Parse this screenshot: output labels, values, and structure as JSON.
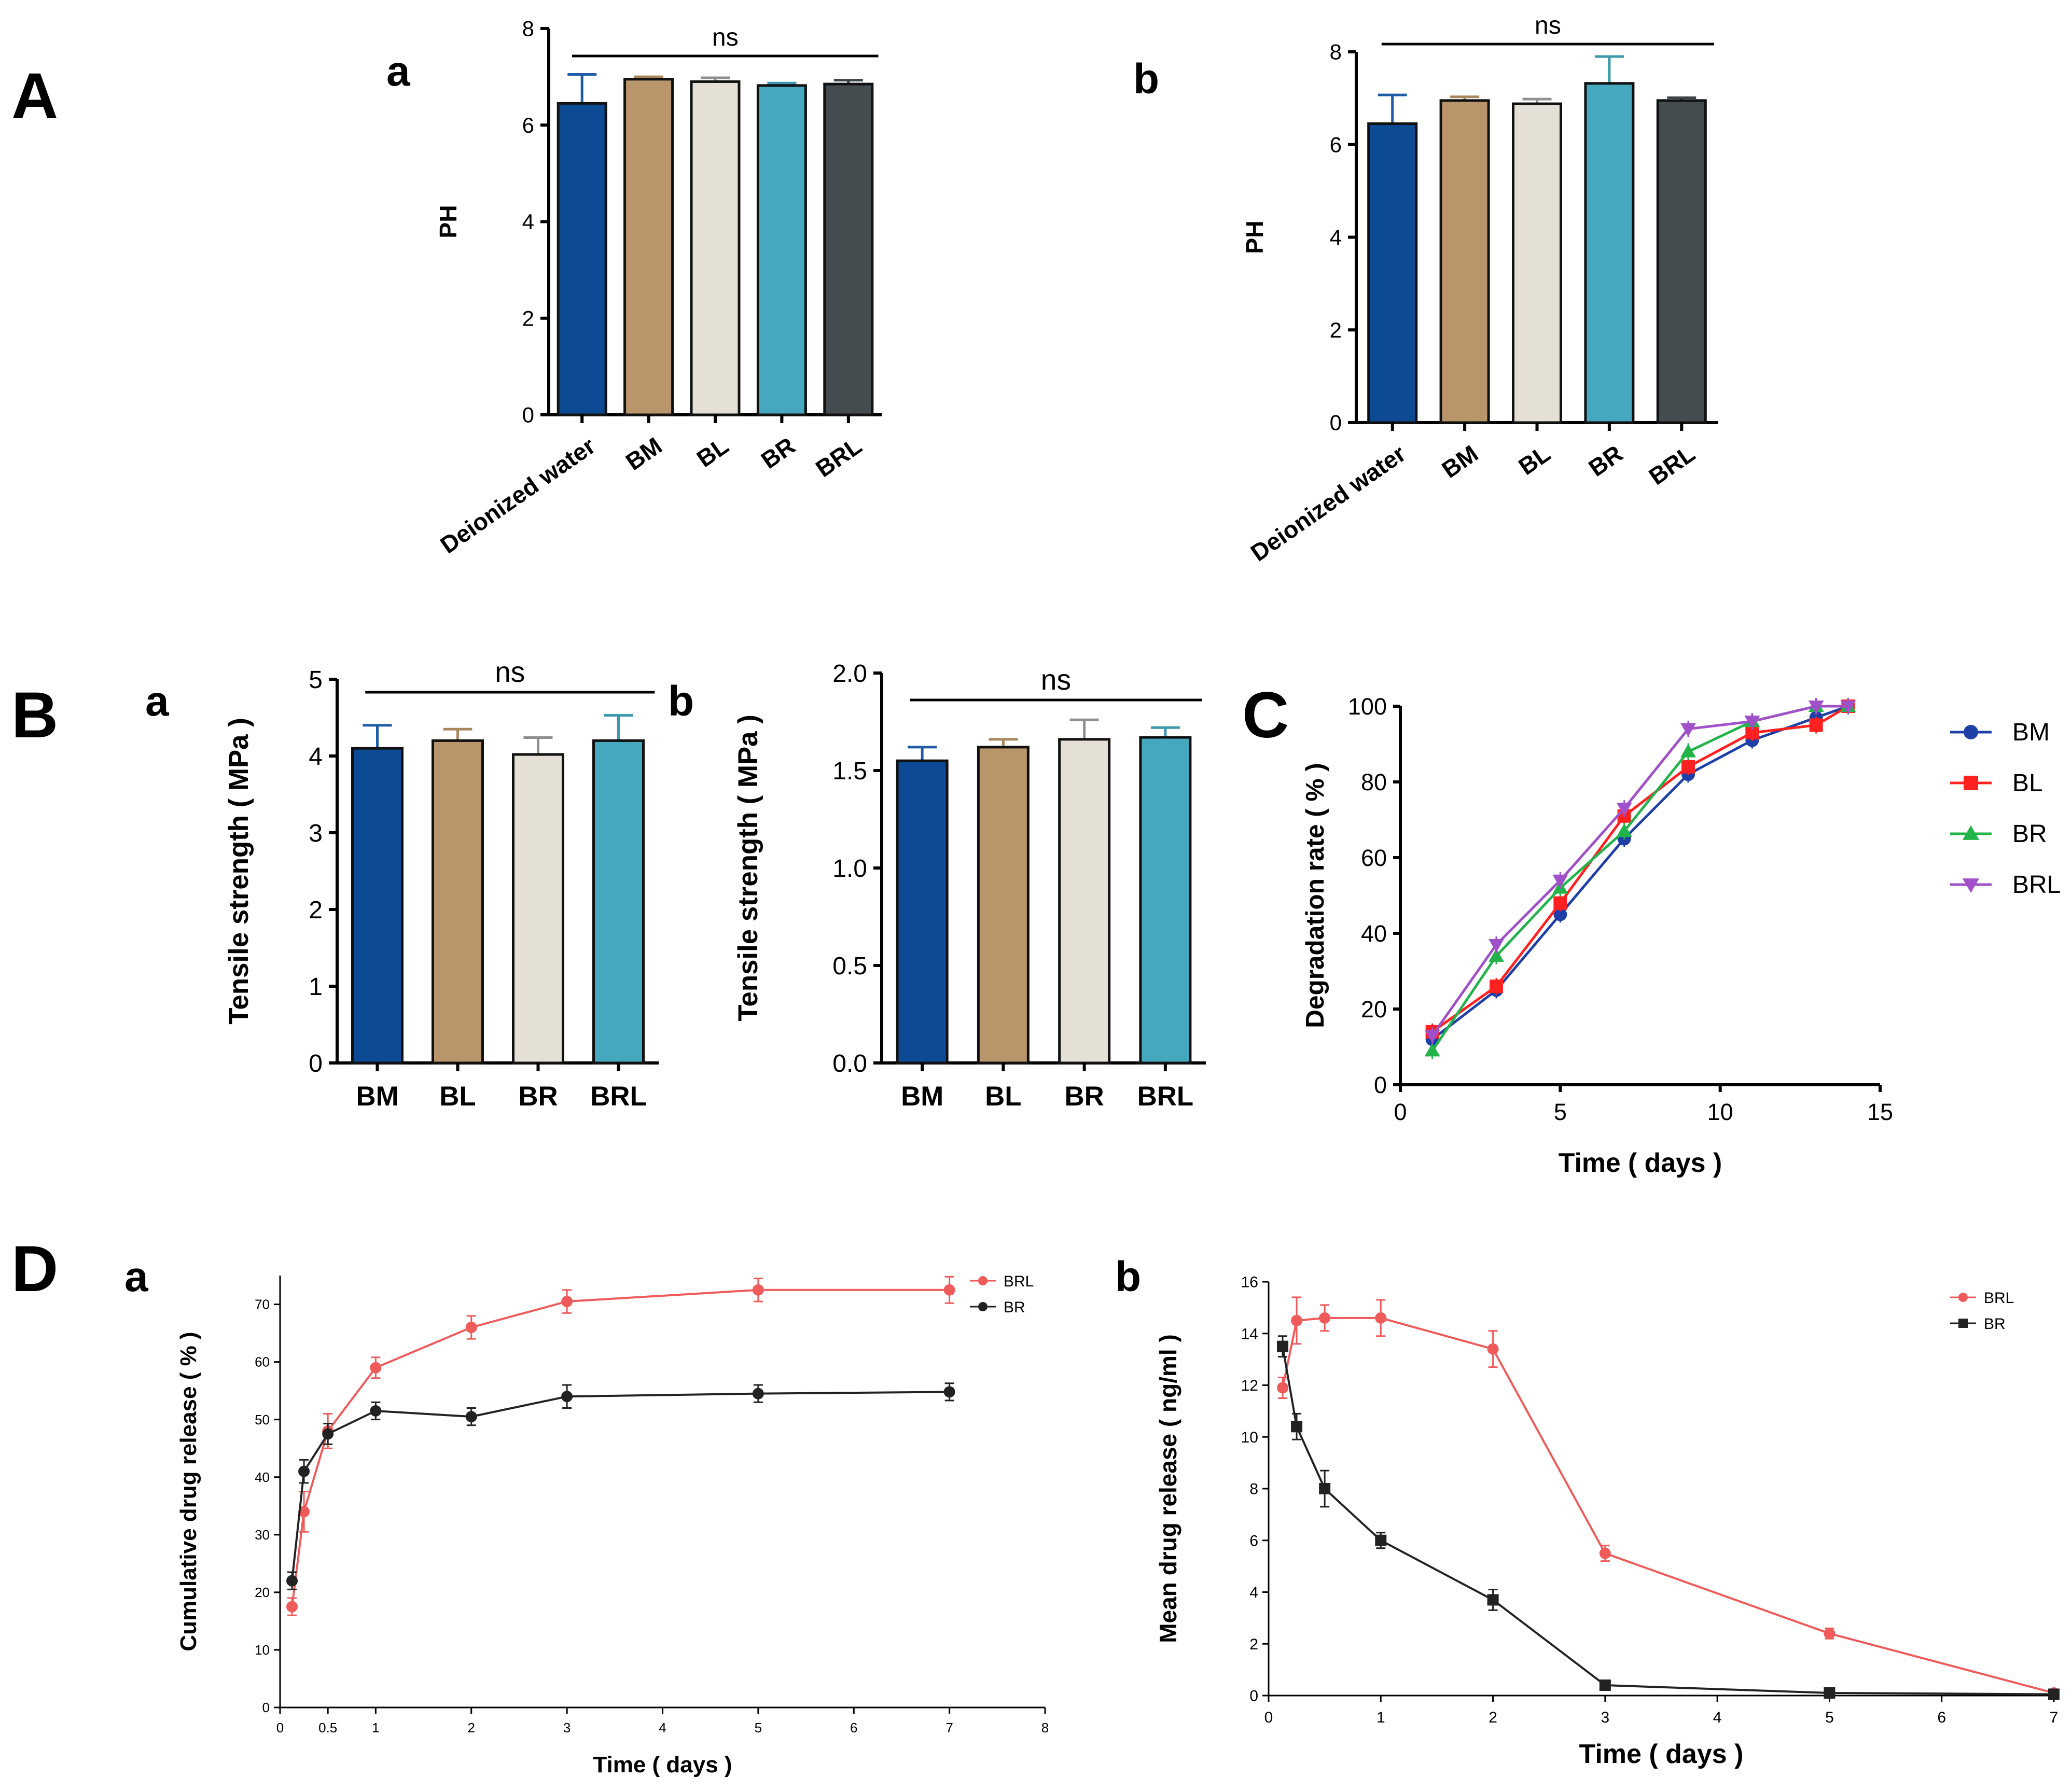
{
  "panel_labels": {
    "A": "A",
    "B": "B",
    "C": "C",
    "D": "D"
  },
  "chart_data": [
    {
      "id": "Aa",
      "sublabel": "a",
      "type": "bar",
      "categories": [
        "Deionized water",
        "BM",
        "BL",
        "BR",
        "BRL"
      ],
      "values": [
        6.45,
        6.95,
        6.9,
        6.82,
        6.85
      ],
      "errors": [
        0.6,
        0.05,
        0.08,
        0.05,
        0.08
      ],
      "colors": [
        "#0d4a94",
        "#b8956a",
        "#e4e0d6",
        "#45a8be",
        "#444c50"
      ],
      "error_colors": [
        "#1f5ca8",
        "#a8865c",
        "#8f8f8f",
        "#3c98ac",
        "#3c4448"
      ],
      "ylabel": "PH",
      "ylim": [
        0,
        8
      ],
      "yticks": [
        "0",
        "2",
        "4",
        "6",
        "8"
      ],
      "significance": "ns"
    },
    {
      "id": "Ab",
      "sublabel": "b",
      "type": "bar",
      "categories": [
        "Deionized water",
        "BM",
        "BL",
        "BR",
        "BRL"
      ],
      "values": [
        6.45,
        6.95,
        6.88,
        7.32,
        6.95
      ],
      "errors": [
        0.62,
        0.08,
        0.1,
        0.58,
        0.06
      ],
      "colors": [
        "#0d4a94",
        "#b8956a",
        "#e4e0d6",
        "#45a8be",
        "#444c50"
      ],
      "error_colors": [
        "#1f5ca8",
        "#a8865c",
        "#8f8f8f",
        "#3c98ac",
        "#3c4448"
      ],
      "ylabel": "PH",
      "ylim": [
        0,
        8
      ],
      "yticks": [
        "0",
        "2",
        "4",
        "6",
        "8"
      ],
      "significance": "ns"
    },
    {
      "id": "Ba",
      "sublabel": "a",
      "type": "bar",
      "categories": [
        "BM",
        "BL",
        "BR",
        "BRL"
      ],
      "values": [
        4.1,
        4.2,
        4.02,
        4.2
      ],
      "errors": [
        0.3,
        0.15,
        0.22,
        0.33
      ],
      "colors": [
        "#0d4a94",
        "#b8956a",
        "#e4e0d6",
        "#45a8be"
      ],
      "error_colors": [
        "#1f5ca8",
        "#a8865c",
        "#8f8f8f",
        "#3c98ac"
      ],
      "ylabel": "Tensile strength ( MPa )",
      "ylim": [
        0,
        5
      ],
      "yticks": [
        "0",
        "1",
        "2",
        "3",
        "4",
        "5"
      ],
      "significance": "ns"
    },
    {
      "id": "Bb",
      "sublabel": "b",
      "type": "bar",
      "categories": [
        "BM",
        "BL",
        "BR",
        "BRL"
      ],
      "values": [
        1.55,
        1.62,
        1.66,
        1.67
      ],
      "errors": [
        0.07,
        0.04,
        0.1,
        0.05
      ],
      "colors": [
        "#0d4a94",
        "#b8956a",
        "#e4e0d6",
        "#45a8be"
      ],
      "error_colors": [
        "#1f5ca8",
        "#a8865c",
        "#8f8f8f",
        "#3c98ac"
      ],
      "ylabel": "Tensile strength ( MPa )",
      "ylim": [
        0,
        2
      ],
      "yticks": [
        "0.0",
        "0.5",
        "1.0",
        "1.5",
        "2.0"
      ],
      "significance": "ns"
    },
    {
      "id": "C",
      "type": "line",
      "xlabel": "Time ( days )",
      "ylabel": "Degradation rate ( % )",
      "xlim": [
        0,
        15
      ],
      "ylim": [
        0,
        100
      ],
      "xticks": [
        "0",
        "5",
        "10",
        "15"
      ],
      "yticks": [
        "0",
        "20",
        "40",
        "60",
        "80",
        "100"
      ],
      "x": [
        1,
        3,
        5,
        7,
        9,
        11,
        13,
        14
      ],
      "series": [
        {
          "name": "BM",
          "color": "#1f3fa8",
          "marker": "circle",
          "values": [
            12,
            25,
            45,
            65,
            82,
            91,
            97,
            100
          ]
        },
        {
          "name": "BL",
          "color": "#ff2020",
          "marker": "square",
          "values": [
            14,
            26,
            48,
            71,
            84,
            93,
            95,
            100
          ]
        },
        {
          "name": "BR",
          "color": "#22b34a",
          "marker": "triangle",
          "values": [
            9,
            34,
            52,
            67,
            88,
            96,
            100,
            100
          ]
        },
        {
          "name": "BRL",
          "color": "#a050c8",
          "marker": "triangle-down",
          "values": [
            13,
            37,
            54,
            73,
            94,
            96,
            100,
            100
          ]
        }
      ],
      "legend_position": "right"
    },
    {
      "id": "Da",
      "sublabel": "a",
      "type": "line",
      "xlabel": "Time ( days )",
      "ylabel": "Cumulative drug release ( % )",
      "xlim": [
        0,
        8
      ],
      "ylim": [
        0,
        75
      ],
      "xticks": [
        "0",
        "0.5",
        "1",
        "2",
        "3",
        "4",
        "5",
        "6",
        "7",
        "8"
      ],
      "xtick_values": [
        0,
        0.5,
        1,
        2,
        3,
        4,
        5,
        6,
        7,
        8
      ],
      "yticks": [
        "0",
        "10",
        "20",
        "30",
        "40",
        "50",
        "60",
        "70"
      ],
      "series": [
        {
          "name": "BRL",
          "color": "#ef5a5a",
          "marker": "circle",
          "x": [
            0.125,
            0.25,
            0.5,
            1,
            2,
            3,
            5,
            7
          ],
          "values": [
            17.5,
            34,
            48,
            59,
            66,
            70.5,
            72.5,
            72.5
          ],
          "errors": [
            1.5,
            3.5,
            3,
            1.8,
            2,
            2,
            2,
            2.3
          ]
        },
        {
          "name": "BR",
          "color": "#222222",
          "marker": "circle",
          "x": [
            0.125,
            0.25,
            0.5,
            1,
            2,
            3,
            5,
            7
          ],
          "values": [
            22,
            41,
            47.5,
            51.5,
            50.5,
            54,
            54.5,
            54.8
          ],
          "errors": [
            1.5,
            2,
            1.8,
            1.5,
            1.5,
            2,
            1.5,
            1.5
          ]
        }
      ],
      "legend_position": "top-right"
    },
    {
      "id": "Db",
      "sublabel": "b",
      "type": "line",
      "xlabel": "Time ( days )",
      "ylabel": "Mean drug release ( ng/ml )",
      "xlim": [
        0,
        7
      ],
      "ylim": [
        0,
        16
      ],
      "xticks": [
        "0",
        "1",
        "2",
        "3",
        "4",
        "5",
        "6",
        "7"
      ],
      "xtick_values": [
        0,
        1,
        2,
        3,
        4,
        5,
        6,
        7
      ],
      "yticks": [
        "0",
        "2",
        "4",
        "6",
        "8",
        "10",
        "12",
        "14",
        "16"
      ],
      "series": [
        {
          "name": "BRL",
          "color": "#ef5a5a",
          "marker": "circle",
          "x": [
            0.125,
            0.25,
            0.5,
            1,
            2,
            3,
            5,
            7
          ],
          "values": [
            11.9,
            14.5,
            14.6,
            14.6,
            13.4,
            5.5,
            2.4,
            0.1
          ],
          "errors": [
            0.4,
            0.9,
            0.5,
            0.7,
            0.7,
            0.3,
            0.2,
            0.1
          ]
        },
        {
          "name": "BR",
          "color": "#222222",
          "marker": "square",
          "x": [
            0.125,
            0.25,
            0.5,
            1,
            2,
            3,
            5,
            7
          ],
          "values": [
            13.5,
            10.4,
            8.0,
            6.0,
            3.7,
            0.4,
            0.1,
            0.05
          ],
          "errors": [
            0.4,
            0.5,
            0.7,
            0.3,
            0.4,
            0.1,
            0.05,
            0.05
          ]
        }
      ],
      "legend_position": "top-right"
    }
  ]
}
